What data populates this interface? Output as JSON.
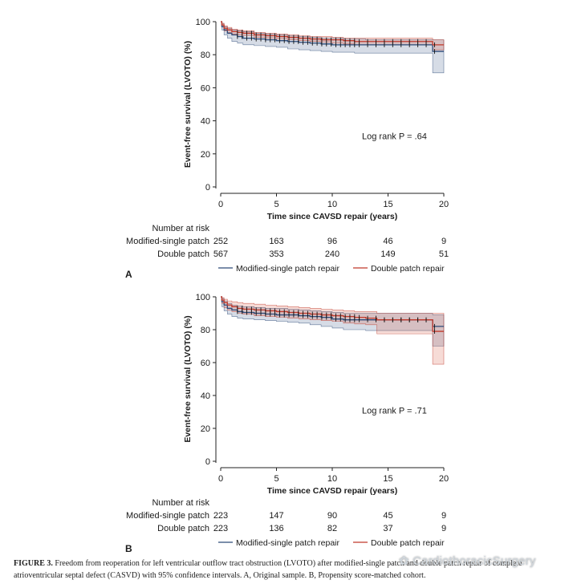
{
  "chart_data": [
    {
      "panel": "A",
      "type": "line",
      "xlabel": "Time since CAVSD repair (years)",
      "ylabel": "Event-free survival (LVOTO) (%)",
      "xticks": [
        "0",
        "5",
        "10",
        "15",
        "20"
      ],
      "yticks": [
        "0",
        "20",
        "40",
        "60",
        "80",
        "100"
      ],
      "xlim": [
        0,
        20
      ],
      "ylim": [
        0,
        100
      ],
      "annotation": "Log rank P = .64",
      "series": [
        {
          "name": "Modified-single patch repair",
          "color": "#2c4a78",
          "x": [
            0,
            0.1,
            0.3,
            0.6,
            1,
            1.5,
            2,
            3,
            4,
            5,
            6,
            7,
            8,
            9,
            10,
            11,
            12,
            13,
            14,
            15,
            16,
            17,
            18,
            18.9,
            19,
            19.5,
            20
          ],
          "y": [
            100,
            97,
            95,
            93,
            92,
            91,
            90,
            89.5,
            89,
            88.5,
            88,
            87.5,
            87,
            86.5,
            86,
            86,
            86,
            86,
            86,
            86,
            86,
            86,
            86,
            86,
            82,
            82,
            82
          ],
          "ci_upper": [
            100,
            99,
            97,
            96,
            95,
            94.5,
            94,
            93,
            92.5,
            92,
            91.5,
            91,
            90.5,
            90,
            90,
            89.5,
            89.5,
            89,
            89,
            89,
            89,
            89,
            89,
            89,
            89,
            89,
            89
          ],
          "ci_lower": [
            100,
            95,
            92,
            90,
            88,
            87,
            86,
            85.5,
            85,
            84.5,
            83.5,
            83,
            82.5,
            82,
            81.5,
            81.5,
            81,
            81,
            81,
            81,
            81,
            81,
            81,
            81,
            69,
            69,
            69
          ]
        },
        {
          "name": "Double patch repair",
          "color": "#c0392b",
          "x": [
            0,
            0.1,
            0.3,
            0.6,
            1,
            1.5,
            2,
            3,
            4,
            5,
            6,
            7,
            8,
            9,
            10,
            11,
            12,
            13,
            14,
            15,
            16,
            17,
            18,
            18.9,
            19,
            19.5,
            20
          ],
          "y": [
            100,
            98,
            96,
            95,
            94,
            93.5,
            93,
            92,
            91.5,
            91,
            90.5,
            90,
            89.5,
            89,
            89,
            88.5,
            88,
            88,
            88,
            88,
            88,
            88,
            88,
            88,
            86,
            86,
            86
          ],
          "ci_upper": [
            100,
            99,
            97.5,
            96.5,
            95.5,
            95,
            94.5,
            93.5,
            93,
            92.5,
            92,
            91.5,
            91,
            91,
            90.5,
            90,
            90,
            90,
            90,
            90,
            90,
            90,
            90,
            90,
            89,
            89,
            89
          ],
          "ci_lower": [
            100,
            97,
            94.5,
            93.5,
            92.5,
            92,
            91.5,
            90.5,
            90,
            89.5,
            89,
            88.5,
            88,
            87.5,
            87,
            86.5,
            86,
            86,
            86,
            86,
            86,
            86,
            86,
            86,
            83,
            83,
            83
          ]
        }
      ],
      "risk_table": {
        "title": "Number at risk",
        "rows": [
          {
            "label": "Modified-single patch",
            "values": [
              "252",
              "163",
              "96",
              "46",
              "9"
            ]
          },
          {
            "label": "Double patch",
            "values": [
              "567",
              "353",
              "240",
              "149",
              "51"
            ]
          }
        ]
      }
    },
    {
      "panel": "B",
      "type": "line",
      "xlabel": "Time since CAVSD repair (years)",
      "ylabel": "Event-free survival (LVOTO) (%)",
      "xticks": [
        "0",
        "5",
        "10",
        "15",
        "20"
      ],
      "yticks": [
        "0",
        "20",
        "40",
        "60",
        "80",
        "100"
      ],
      "xlim": [
        0,
        20
      ],
      "ylim": [
        0,
        100
      ],
      "annotation": "Log rank P = .71",
      "series": [
        {
          "name": "Modified-single patch repair",
          "color": "#2c4a78",
          "x": [
            0,
            0.1,
            0.3,
            0.6,
            1,
            1.5,
            2,
            3,
            4,
            5,
            6,
            7,
            8,
            9,
            10,
            11,
            12,
            13,
            14,
            15,
            16,
            17,
            18,
            18.9,
            19,
            19.5,
            20
          ],
          "y": [
            100,
            97,
            95,
            93,
            92,
            91,
            90.5,
            90,
            89.5,
            89,
            89,
            88.5,
            88,
            87.5,
            86.5,
            86,
            86,
            86,
            86,
            86,
            86,
            86,
            86,
            86,
            82,
            82,
            82
          ],
          "ci_upper": [
            100,
            99,
            97.5,
            96,
            95,
            94.5,
            94,
            93.5,
            93,
            93,
            92.5,
            92,
            91.5,
            91,
            90.5,
            90,
            90,
            90,
            90,
            90,
            90,
            90,
            90,
            90,
            89,
            89,
            89
          ],
          "ci_lower": [
            100,
            94,
            91.5,
            89.5,
            88,
            87,
            86.5,
            86,
            85.5,
            85,
            84.5,
            84,
            83,
            82,
            81,
            80,
            80,
            79.5,
            79.5,
            79.5,
            79.5,
            79.5,
            79.5,
            79.5,
            70,
            70,
            70
          ]
        },
        {
          "name": "Double patch repair",
          "color": "#c0392b",
          "x": [
            0,
            0.1,
            0.3,
            0.6,
            1,
            1.5,
            2,
            3,
            4,
            5,
            6,
            7,
            8,
            9,
            10,
            11,
            12,
            13,
            14,
            15,
            16,
            17,
            18,
            18.9,
            19,
            19.5,
            20
          ],
          "y": [
            100,
            98,
            96.5,
            95,
            94,
            93,
            92.5,
            92,
            91.5,
            91,
            90.5,
            90,
            89.5,
            89,
            88.5,
            88,
            87.5,
            87,
            86,
            86,
            86,
            86,
            86,
            86,
            79,
            79,
            79
          ],
          "ci_upper": [
            100,
            99.5,
            98.5,
            97.5,
            97,
            96.5,
            96,
            95.5,
            95,
            94.5,
            94,
            93.5,
            93,
            92.5,
            92,
            91.5,
            91,
            91,
            90,
            90,
            90,
            90,
            90,
            90,
            90,
            90,
            90
          ],
          "ci_lower": [
            100,
            96,
            93.5,
            92,
            91,
            90,
            89.5,
            88.5,
            88,
            87.5,
            87,
            86.5,
            86,
            85.5,
            85,
            84,
            83.5,
            83,
            77.5,
            77.5,
            77.5,
            77.5,
            77.5,
            77.5,
            59,
            59,
            59
          ]
        }
      ],
      "risk_table": {
        "title": "Number at risk",
        "rows": [
          {
            "label": "Modified-single patch",
            "values": [
              "223",
              "147",
              "90",
              "45",
              "9"
            ]
          },
          {
            "label": "Double patch",
            "values": [
              "223",
              "136",
              "82",
              "37",
              "9"
            ]
          }
        ]
      }
    }
  ],
  "caption": {
    "label": "FIGURE 3.",
    "text": "Freedom from reoperation for left ventricular outflow tract obstruction (LVOTO) after modified-single patch and double patch repair of complete atrioventricular septal defect (CASVD) with 95% confidence intervals. A, Original sample. B, Propensity score-matched cohort."
  },
  "watermark": "CardiothoracicSurgery"
}
